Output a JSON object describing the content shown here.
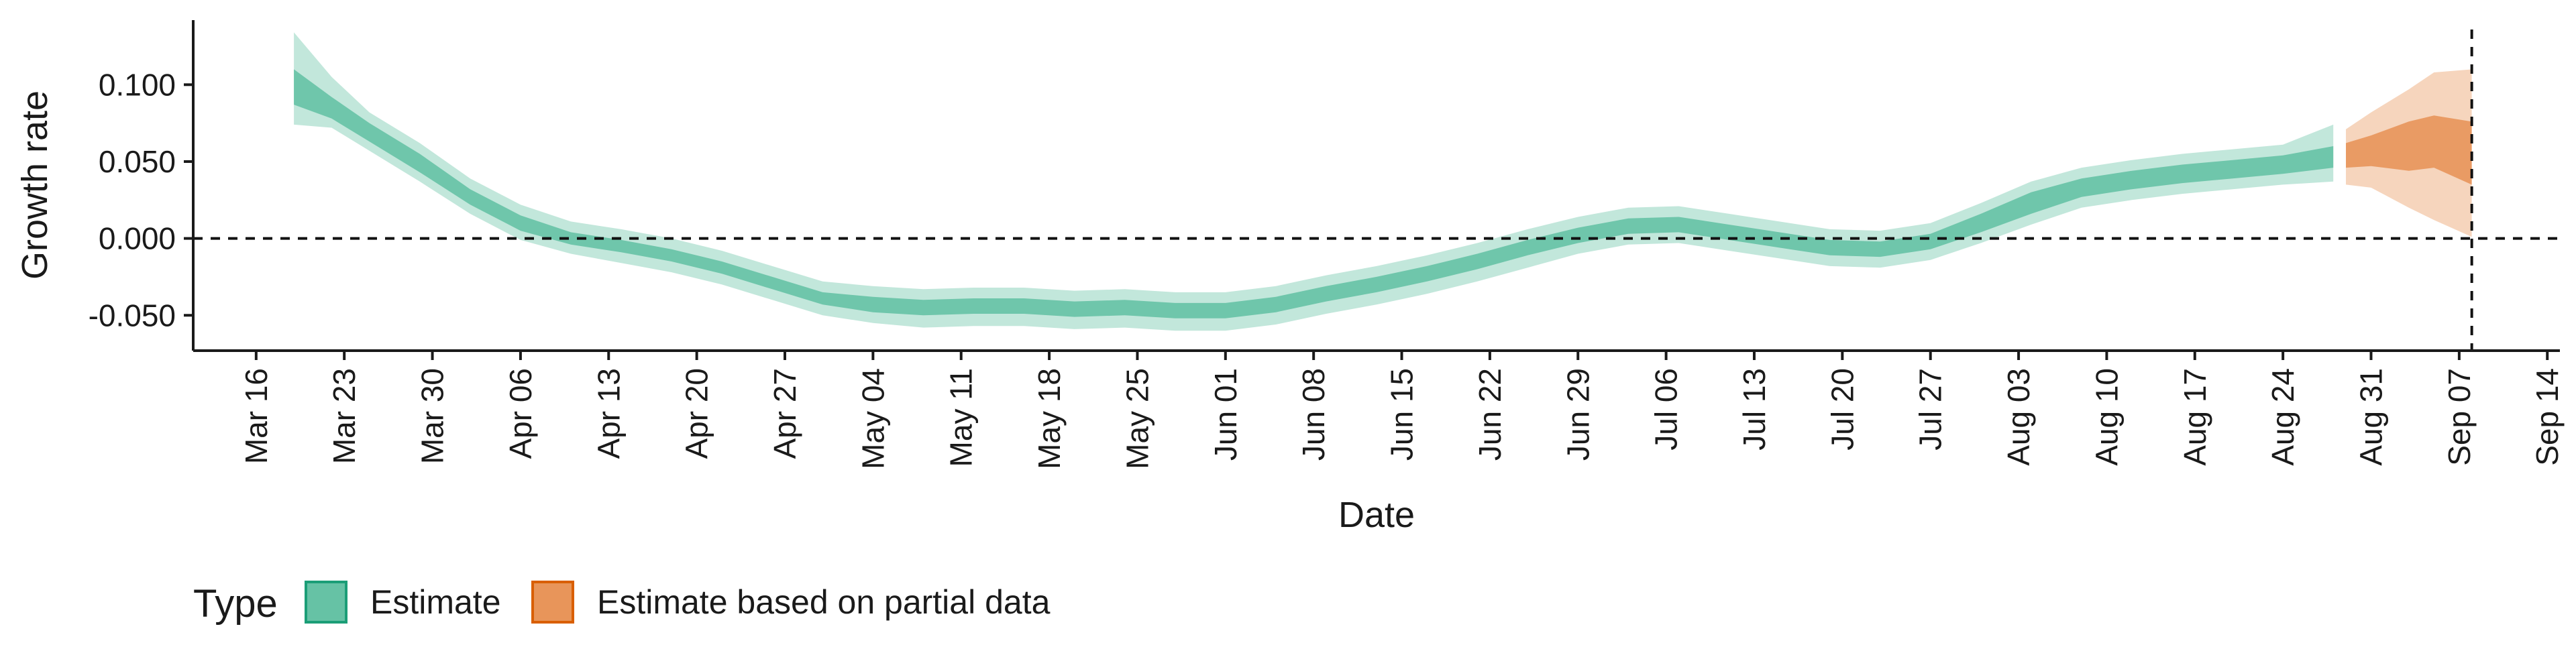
{
  "chart_data": {
    "type": "area",
    "xlabel": "Date",
    "ylabel": "Growth rate",
    "ylim": [
      -0.073,
      0.142
    ],
    "xlim": [
      "2020-03-11",
      "2020-09-15"
    ],
    "y_ticks": [
      {
        "value": -0.05,
        "label": "-0.050"
      },
      {
        "value": 0.0,
        "label": "0.000"
      },
      {
        "value": 0.05,
        "label": "0.050"
      },
      {
        "value": 0.1,
        "label": "0.100"
      }
    ],
    "x_ticks": [
      {
        "date": "2020-03-16",
        "label": "Mar 16"
      },
      {
        "date": "2020-03-23",
        "label": "Mar 23"
      },
      {
        "date": "2020-03-30",
        "label": "Mar 30"
      },
      {
        "date": "2020-04-06",
        "label": "Apr 06"
      },
      {
        "date": "2020-04-13",
        "label": "Apr 13"
      },
      {
        "date": "2020-04-20",
        "label": "Apr 20"
      },
      {
        "date": "2020-04-27",
        "label": "Apr 27"
      },
      {
        "date": "2020-05-04",
        "label": "May 04"
      },
      {
        "date": "2020-05-11",
        "label": "May 11"
      },
      {
        "date": "2020-05-18",
        "label": "May 18"
      },
      {
        "date": "2020-05-25",
        "label": "May 25"
      },
      {
        "date": "2020-06-01",
        "label": "Jun 01"
      },
      {
        "date": "2020-06-08",
        "label": "Jun 08"
      },
      {
        "date": "2020-06-15",
        "label": "Jun 15"
      },
      {
        "date": "2020-06-22",
        "label": "Jun 22"
      },
      {
        "date": "2020-06-29",
        "label": "Jun 29"
      },
      {
        "date": "2020-07-06",
        "label": "Jul 06"
      },
      {
        "date": "2020-07-13",
        "label": "Jul 13"
      },
      {
        "date": "2020-07-20",
        "label": "Jul 20"
      },
      {
        "date": "2020-07-27",
        "label": "Jul 27"
      },
      {
        "date": "2020-08-03",
        "label": "Aug 03"
      },
      {
        "date": "2020-08-10",
        "label": "Aug 10"
      },
      {
        "date": "2020-08-17",
        "label": "Aug 17"
      },
      {
        "date": "2020-08-24",
        "label": "Aug 24"
      },
      {
        "date": "2020-08-31",
        "label": "Aug 31"
      },
      {
        "date": "2020-09-07",
        "label": "Sep 07"
      },
      {
        "date": "2020-09-14",
        "label": "Sep 14"
      }
    ],
    "reference_lines": [
      {
        "axis": "y",
        "value": 0,
        "style": "dashed"
      },
      {
        "axis": "x",
        "date": "2020-09-08",
        "style": "dashed"
      }
    ],
    "grid": false,
    "legend": {
      "title": "Type",
      "position": "bottom-left",
      "entries": [
        {
          "label": "Estimate",
          "fill": "#66c2a5",
          "border": "#1b9e77"
        },
        {
          "label": "Estimate based on partial data",
          "fill": "#e8955a",
          "border": "#d95f02"
        }
      ]
    },
    "series": [
      {
        "name": "Estimate",
        "fill_color": "#66c2a5",
        "x": [
          "2020-03-19",
          "2020-03-22",
          "2020-03-25",
          "2020-03-29",
          "2020-04-02",
          "2020-04-06",
          "2020-04-10",
          "2020-04-14",
          "2020-04-18",
          "2020-04-22",
          "2020-04-26",
          "2020-04-30",
          "2020-05-04",
          "2020-05-08",
          "2020-05-12",
          "2020-05-16",
          "2020-05-20",
          "2020-05-24",
          "2020-05-28",
          "2020-06-01",
          "2020-06-05",
          "2020-06-09",
          "2020-06-13",
          "2020-06-17",
          "2020-06-21",
          "2020-06-25",
          "2020-06-29",
          "2020-07-03",
          "2020-07-07",
          "2020-07-11",
          "2020-07-15",
          "2020-07-19",
          "2020-07-23",
          "2020-07-27",
          "2020-07-31",
          "2020-08-04",
          "2020-08-08",
          "2020-08-12",
          "2020-08-16",
          "2020-08-20",
          "2020-08-24",
          "2020-08-28"
        ],
        "median": [
          0.098,
          0.085,
          0.069,
          0.049,
          0.027,
          0.01,
          0.0,
          -0.005,
          -0.011,
          -0.019,
          -0.029,
          -0.039,
          -0.043,
          -0.045,
          -0.044,
          -0.044,
          -0.046,
          -0.045,
          -0.047,
          -0.047,
          -0.043,
          -0.036,
          -0.03,
          -0.023,
          -0.015,
          -0.006,
          0.002,
          0.008,
          0.009,
          0.004,
          -0.001,
          -0.006,
          -0.007,
          -0.002,
          0.01,
          0.023,
          0.033,
          0.038,
          0.042,
          0.045,
          0.048,
          0.053
        ],
        "inner_lower": [
          0.087,
          0.078,
          0.063,
          0.043,
          0.022,
          0.005,
          -0.004,
          -0.009,
          -0.015,
          -0.023,
          -0.033,
          -0.043,
          -0.048,
          -0.05,
          -0.049,
          -0.049,
          -0.051,
          -0.05,
          -0.052,
          -0.052,
          -0.048,
          -0.041,
          -0.035,
          -0.028,
          -0.02,
          -0.011,
          -0.003,
          0.003,
          0.004,
          -0.001,
          -0.006,
          -0.011,
          -0.012,
          -0.007,
          0.004,
          0.016,
          0.027,
          0.032,
          0.036,
          0.039,
          0.042,
          0.046
        ],
        "inner_upper": [
          0.11,
          0.092,
          0.075,
          0.055,
          0.032,
          0.015,
          0.004,
          -0.001,
          -0.007,
          -0.015,
          -0.025,
          -0.035,
          -0.038,
          -0.04,
          -0.039,
          -0.039,
          -0.041,
          -0.04,
          -0.042,
          -0.042,
          -0.038,
          -0.031,
          -0.025,
          -0.018,
          -0.01,
          -0.001,
          0.007,
          0.013,
          0.014,
          0.009,
          0.004,
          -0.001,
          -0.002,
          0.003,
          0.016,
          0.03,
          0.039,
          0.044,
          0.048,
          0.051,
          0.054,
          0.06
        ],
        "outer_lower": [
          0.074,
          0.072,
          0.057,
          0.037,
          0.016,
          -0.001,
          -0.01,
          -0.016,
          -0.022,
          -0.03,
          -0.04,
          -0.05,
          -0.055,
          -0.058,
          -0.057,
          -0.057,
          -0.059,
          -0.058,
          -0.06,
          -0.06,
          -0.056,
          -0.049,
          -0.043,
          -0.036,
          -0.028,
          -0.019,
          -0.01,
          -0.004,
          -0.003,
          -0.008,
          -0.013,
          -0.018,
          -0.019,
          -0.014,
          -0.003,
          0.009,
          0.02,
          0.025,
          0.029,
          0.032,
          0.035,
          0.037
        ],
        "outer_upper": [
          0.134,
          0.105,
          0.082,
          0.062,
          0.039,
          0.022,
          0.011,
          0.006,
          0.0,
          -0.008,
          -0.018,
          -0.028,
          -0.031,
          -0.033,
          -0.032,
          -0.032,
          -0.034,
          -0.033,
          -0.035,
          -0.035,
          -0.031,
          -0.024,
          -0.018,
          -0.011,
          -0.003,
          0.006,
          0.014,
          0.02,
          0.021,
          0.016,
          0.011,
          0.006,
          0.005,
          0.01,
          0.023,
          0.037,
          0.046,
          0.051,
          0.055,
          0.058,
          0.061,
          0.074
        ]
      },
      {
        "name": "Estimate based on partial data",
        "fill_color": "#e8955a",
        "x": [
          "2020-08-29",
          "2020-08-31",
          "2020-09-03",
          "2020-09-05",
          "2020-09-08"
        ],
        "median": [
          0.054,
          0.057,
          0.062,
          0.064,
          0.06
        ],
        "inner_lower": [
          0.046,
          0.047,
          0.044,
          0.046,
          0.035
        ],
        "inner_upper": [
          0.062,
          0.067,
          0.076,
          0.08,
          0.076
        ],
        "outer_lower": [
          0.035,
          0.033,
          0.02,
          0.012,
          0.001
        ],
        "outer_upper": [
          0.071,
          0.082,
          0.097,
          0.108,
          0.11
        ]
      }
    ]
  }
}
